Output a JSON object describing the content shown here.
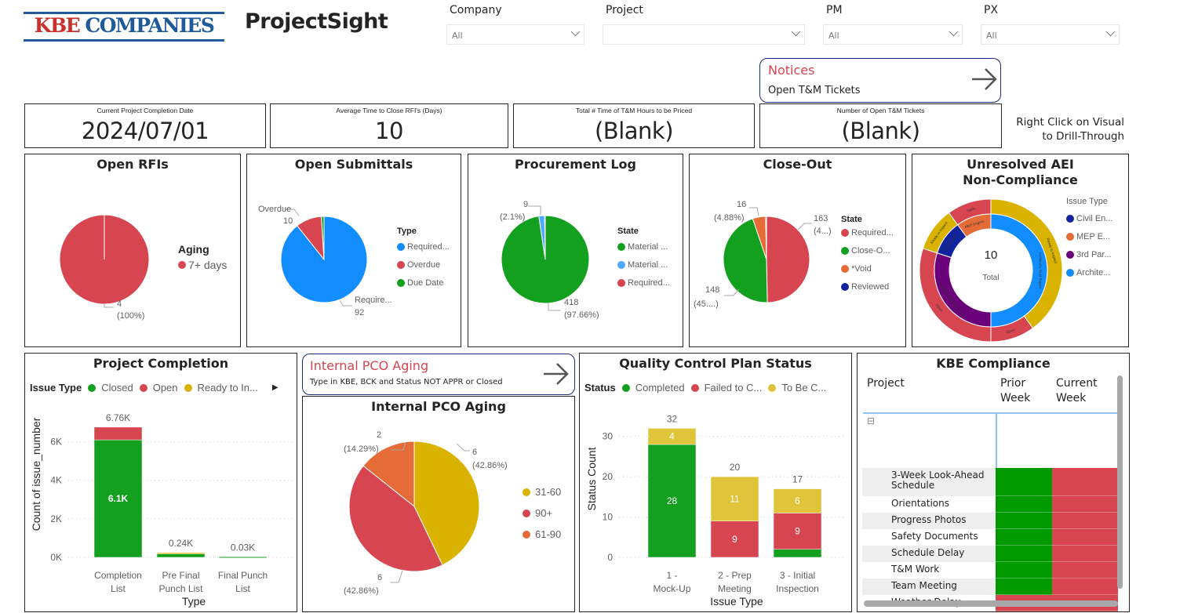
{
  "header": {
    "logo_part1": "KBE",
    "logo_part2": "COMPANIES",
    "app_title": "ProjectSight"
  },
  "filters": [
    {
      "label": "Company",
      "value": "All"
    },
    {
      "label": "Project",
      "value": ""
    },
    {
      "label": "PM",
      "value": "All"
    },
    {
      "label": "PX",
      "value": "All"
    }
  ],
  "notices": {
    "title": "Notices",
    "subtitle": "Open T&M Tickets"
  },
  "kpis": [
    {
      "label": "Current Project Completion Date",
      "value": "2024/07/01"
    },
    {
      "label": "Average Time to Close RFI's (Days)",
      "value": "10"
    },
    {
      "label": "Total # Time of T&M Hours to be Priced",
      "value": "(Blank)"
    },
    {
      "label": "Number of Open T&M Tickets",
      "value": "(Blank)"
    }
  ],
  "drill_hint": {
    "line1": "Right Click on Visual",
    "line2": "to Drill-Through"
  },
  "pco_button": {
    "title": "Internal PCO Aging",
    "subtitle": "Type in KBE, BCK and Status NOT APPR or Closed"
  },
  "compliance": {
    "title": "KBE Compliance",
    "col_project": "Project",
    "col_prior": "Prior Week",
    "col_current": "Current Week",
    "expand_icon": "⊟",
    "status_colors": {
      "compliant": "#009900",
      "non_compliant": "#d64550"
    },
    "rows": [
      {
        "name": "3-Week Look-Ahead Schedule",
        "prior": "compliant",
        "current": "non_compliant"
      },
      {
        "name": "Orientations",
        "prior": "compliant",
        "current": "non_compliant"
      },
      {
        "name": "Progress Photos",
        "prior": "compliant",
        "current": "non_compliant"
      },
      {
        "name": "Safety Documents",
        "prior": "compliant",
        "current": "non_compliant"
      },
      {
        "name": "Schedule Delay",
        "prior": "compliant",
        "current": "non_compliant"
      },
      {
        "name": "T&M Work",
        "prior": "compliant",
        "current": "non_compliant"
      },
      {
        "name": "Team Meeting",
        "prior": "compliant",
        "current": "non_compliant"
      },
      {
        "name": "Weather Delay",
        "prior": "non_compliant",
        "current": "non_compliant"
      }
    ]
  },
  "chart_data": [
    {
      "type": "pie",
      "title": "Open RFIs",
      "legend_title": "Aging",
      "slices": [
        {
          "name": "7+ days",
          "value": 4,
          "color": "#d64550",
          "value_label": "4",
          "pct_label": "(100%)"
        }
      ]
    },
    {
      "type": "pie",
      "title": "Open Submittals",
      "legend_title": "Type",
      "slices": [
        {
          "name": "Required...",
          "value": 92,
          "color": "#118dff",
          "value_label": "92",
          "cat_label": "Require..."
        },
        {
          "name": "Overdue",
          "value": 10,
          "color": "#d64550",
          "value_label": "10",
          "cat_label": "Overdue"
        },
        {
          "name": "Due Date",
          "value": 1,
          "color": "#13a01f"
        }
      ]
    },
    {
      "type": "pie",
      "title": "Procurement Log",
      "legend_title": "State",
      "slices": [
        {
          "name": "Material ...",
          "value": 418,
          "color": "#13a01f",
          "value_label": "418",
          "pct_label": "(97.66%)"
        },
        {
          "name": "Material ...",
          "value": 9,
          "color": "#4fa8ff",
          "value_label": "9",
          "pct_label": "(2.1%)"
        },
        {
          "name": "Required...",
          "value": 1,
          "color": "#d64550"
        }
      ]
    },
    {
      "type": "pie",
      "title": "Close-Out",
      "legend_title": "State",
      "slices": [
        {
          "name": "Required...",
          "value": 163,
          "color": "#d64550",
          "value_label": "163",
          "pct_label": "(4...)"
        },
        {
          "name": "Close-O...",
          "value": 148,
          "color": "#13a01f",
          "value_label": "148",
          "pct_label": "(45....)"
        },
        {
          "name": "*Void",
          "value": 16,
          "color": "#e66c37",
          "value_label": "16",
          "pct_label": "(4.88%)"
        },
        {
          "name": "Reviewed",
          "value": 1,
          "color": "#12239e"
        }
      ]
    },
    {
      "type": "pie",
      "title": "Unresolved AEI Non-Compliance",
      "title_line1": "Unresolved AEI",
      "title_line2": "Non-Compliance",
      "legend_title": "Issue Type",
      "center_value": "10",
      "center_label": "Total",
      "inner": [
        {
          "name": "Archite...",
          "full": "Architect's Field Report",
          "value": 5,
          "color": "#118dff"
        },
        {
          "name": "3rd Par...",
          "full": "3rd Party Inspection Report",
          "value": 3,
          "color": "#6b007b"
        },
        {
          "name": "Civil En...",
          "full": "Civil Engine...",
          "value": 1,
          "color": "#12239e"
        },
        {
          "name": "MEP E...",
          "full": "MEP Engine...",
          "value": 1,
          "color": "#e66c37"
        }
      ],
      "outer": [
        {
          "name": "Ready to Inspect",
          "value": 4,
          "color": "#d9b300"
        },
        {
          "name": "Open",
          "value": 1,
          "color": "#d64550"
        },
        {
          "name": "Open",
          "value": 3,
          "color": "#d64550"
        },
        {
          "name": "Ready to Inspect",
          "value": 1,
          "color": "#d9b300"
        },
        {
          "name": "Open",
          "value": 1,
          "color": "#d64550"
        }
      ],
      "legend_order": [
        2,
        3,
        1,
        0
      ]
    },
    {
      "type": "bar",
      "stacked": true,
      "title": "Project Completion",
      "legend_title": "Issue Type",
      "xlabel": "Type",
      "ylabel": "Count of issue_number",
      "ylim": [
        0,
        7000
      ],
      "yticks": [
        {
          "v": 0,
          "t": "0K"
        },
        {
          "v": 2000,
          "t": "2K"
        },
        {
          "v": 4000,
          "t": "4K"
        },
        {
          "v": 6000,
          "t": "6K"
        }
      ],
      "categories": [
        "Completion List",
        "Pre Final Punch List",
        "Final Punch List"
      ],
      "category_lines": [
        [
          "Completion",
          "List"
        ],
        [
          "Pre Final",
          "Punch List"
        ],
        [
          "Final Punch",
          "List"
        ]
      ],
      "totals": [
        "6.76K",
        "0.24K",
        "0.03K"
      ],
      "series": [
        {
          "name": "Closed",
          "color": "#13a01f",
          "values": [
            6100,
            200,
            30
          ],
          "labels": [
            "6.1K",
            "",
            ""
          ]
        },
        {
          "name": "Open",
          "color": "#d64550",
          "values": [
            660,
            0,
            0
          ],
          "labels": [
            "",
            "",
            ""
          ]
        },
        {
          "name": "Ready to In...",
          "color": "#d9b300",
          "values": [
            0,
            40,
            0
          ],
          "labels": [
            "",
            "",
            ""
          ]
        }
      ]
    },
    {
      "type": "pie",
      "title": "Internal PCO Aging",
      "legend_title": "",
      "slices": [
        {
          "name": "31-60",
          "value": 6,
          "color": "#d9b300",
          "value_label": "6",
          "pct_label": "(42.86%)"
        },
        {
          "name": "90+",
          "value": 6,
          "color": "#d64550",
          "value_label": "6",
          "pct_label": "(42.86%)"
        },
        {
          "name": "61-90",
          "value": 2,
          "color": "#e66c37",
          "value_label": "2",
          "pct_label": "(14.29%)"
        }
      ]
    },
    {
      "type": "bar",
      "stacked": true,
      "title": "Quality Control Plan Status",
      "legend_title": "Status",
      "xlabel": "Issue Type",
      "ylabel": "Status Count",
      "ylim": [
        0,
        35
      ],
      "yticks": [
        {
          "v": 0,
          "t": "0"
        },
        {
          "v": 10,
          "t": "10"
        },
        {
          "v": 20,
          "t": "20"
        },
        {
          "v": 30,
          "t": "30"
        }
      ],
      "categories": [
        "1 - Mock-Up",
        "2 - Prep Meeting",
        "3 - Initial Inspection"
      ],
      "category_lines": [
        [
          "1 -",
          "Mock-Up"
        ],
        [
          "2 - Prep",
          "Meeting"
        ],
        [
          "3 - Initial",
          "Inspection"
        ]
      ],
      "totals": [
        "32",
        "20",
        "17"
      ],
      "series": [
        {
          "name": "Completed",
          "color": "#13a01f",
          "values": [
            28,
            0,
            2
          ],
          "labels": [
            "28",
            "",
            ""
          ]
        },
        {
          "name": "Failed to C...",
          "color": "#d64550",
          "values": [
            0,
            9,
            9
          ],
          "labels": [
            "",
            "9",
            "9"
          ]
        },
        {
          "name": "To Be C...",
          "color": "#e0c43a",
          "values": [
            4,
            11,
            6
          ],
          "labels": [
            "4",
            "11",
            "6"
          ]
        }
      ]
    }
  ]
}
